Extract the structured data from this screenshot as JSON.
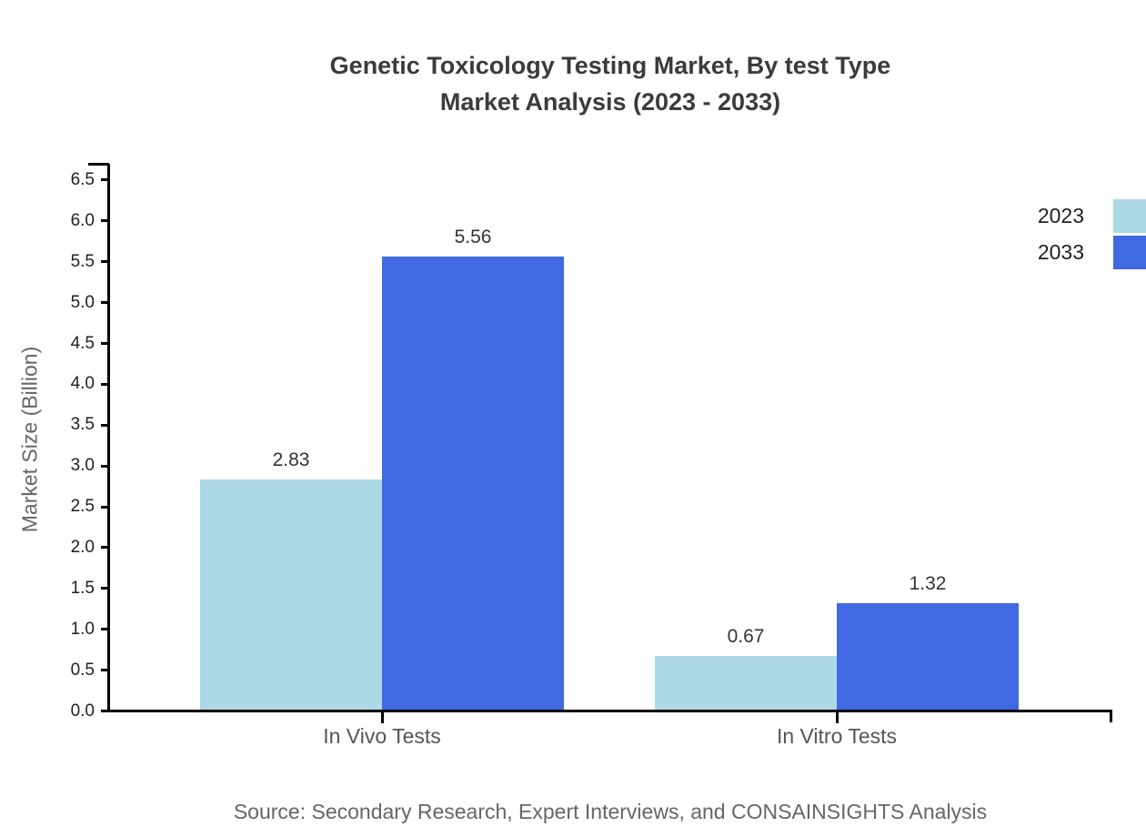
{
  "title": {
    "line1": "Genetic Toxicology Testing Market, By test Type",
    "line2": "Market Analysis (2023 - 2033)"
  },
  "y_axis": {
    "label": "Market Size (Billion)",
    "tick_min": 0.0,
    "tick_max": 6.5,
    "tick_step": 0.5
  },
  "legend": {
    "items": [
      {
        "label": "2023",
        "color": "#ADD8E6"
      },
      {
        "label": "2033",
        "color": "#4169E1"
      }
    ]
  },
  "source": "Source: Secondary Research, Expert Interviews, and CONSAINSIGHTS Analysis",
  "chart_data": {
    "type": "bar",
    "title": "Genetic Toxicology Testing Market, By test Type Market Analysis (2023 - 2033)",
    "categories": [
      "In Vivo Tests",
      "In Vitro Tests"
    ],
    "series": [
      {
        "name": "2023",
        "color": "#ADD8E6",
        "values": [
          2.83,
          0.67
        ]
      },
      {
        "name": "2033",
        "color": "#4169E1",
        "values": [
          5.56,
          1.32
        ]
      }
    ],
    "xlabel": "",
    "ylabel": "Market Size (Billion)",
    "ylim": [
      0,
      6.5
    ],
    "ytick_step": 0.5,
    "grid": false,
    "legend_position": "top-right",
    "value_labels": true
  }
}
